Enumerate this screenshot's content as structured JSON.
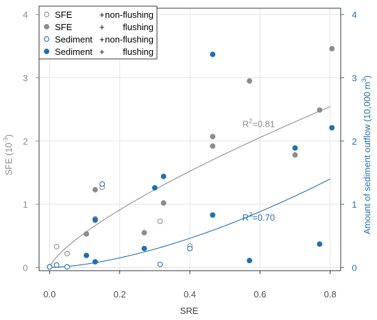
{
  "colors": {
    "sfe": "#8c8c8c",
    "sediment": "#1f6fb2",
    "grid": "#e3e3e3",
    "frame": "#333333"
  },
  "chart_data": {
    "type": "scatter",
    "xlabel": "SRE",
    "ylabel_left": {
      "text": "SFE (10",
      "sup": "-3",
      "suffix": ")"
    },
    "ylabel_right": {
      "text": "Amount of sediment outflow (10,000 m",
      "sup": "3",
      "suffix": ")"
    },
    "xlim": [
      -0.03,
      0.83
    ],
    "ylim": [
      -0.05,
      4.1
    ],
    "x_ticks": [
      0.0,
      0.2,
      0.4,
      0.6,
      0.8
    ],
    "x_tick_labels": [
      "0.0",
      "0.2",
      "0.4",
      "0.6",
      "0.8"
    ],
    "y_ticks": [
      0,
      1,
      2,
      3,
      4
    ],
    "y_left_tick_labels": [
      "0",
      "1",
      "2",
      "3",
      "4"
    ],
    "y_right_tick_labels": [
      "0",
      "1",
      "2",
      "3",
      "4"
    ],
    "grid": true,
    "legend": {
      "placement": "top-left",
      "entries": [
        {
          "label": "SFE",
          "condition": "+ non-flushing",
          "series": "sfe_nonflush"
        },
        {
          "label": "SFE",
          "condition": "+ flushing",
          "series": "sfe_flush"
        },
        {
          "label": "Sediment",
          "condition": "+ non-flushing",
          "series": "sed_nonflush"
        },
        {
          "label": "Sediment",
          "condition": "+ flushing",
          "series": "sed_flush"
        }
      ]
    },
    "series": [
      {
        "id": "sfe_nonflush",
        "color_key": "sfe",
        "filled": false,
        "points": [
          [
            0.0,
            0.01
          ],
          [
            0.02,
            0.33
          ],
          [
            0.05,
            0.22
          ],
          [
            0.15,
            1.27
          ],
          [
            0.315,
            0.73
          ],
          [
            0.4,
            0.34
          ]
        ]
      },
      {
        "id": "sfe_flush",
        "color_key": "sfe",
        "filled": true,
        "points": [
          [
            0.105,
            0.53
          ],
          [
            0.13,
            1.23
          ],
          [
            0.13,
            0.77
          ],
          [
            0.27,
            0.55
          ],
          [
            0.325,
            1.02
          ],
          [
            0.465,
            2.07
          ],
          [
            0.465,
            1.92
          ],
          [
            0.57,
            2.95
          ],
          [
            0.7,
            1.78
          ],
          [
            0.77,
            2.49
          ],
          [
            0.805,
            3.46
          ]
        ]
      },
      {
        "id": "sed_nonflush",
        "color_key": "sediment",
        "filled": false,
        "points": [
          [
            0.0,
            0.01
          ],
          [
            0.02,
            0.04
          ],
          [
            0.05,
            0.01
          ],
          [
            0.15,
            1.32
          ],
          [
            0.315,
            0.05
          ],
          [
            0.4,
            0.3
          ]
        ]
      },
      {
        "id": "sed_flush",
        "color_key": "sediment",
        "filled": true,
        "points": [
          [
            0.105,
            0.19
          ],
          [
            0.13,
            0.75
          ],
          [
            0.13,
            0.09
          ],
          [
            0.27,
            0.3
          ],
          [
            0.3,
            1.26
          ],
          [
            0.325,
            1.44
          ],
          [
            0.465,
            3.37
          ],
          [
            0.465,
            0.83
          ],
          [
            0.57,
            0.11
          ],
          [
            0.7,
            1.89
          ],
          [
            0.77,
            0.37
          ],
          [
            0.805,
            2.21
          ]
        ]
      }
    ],
    "fits": [
      {
        "id": "sfe_fit",
        "color_key": "sfe",
        "formula": "3.0*x^0.74",
        "a": 3.0,
        "b": 0.74,
        "x_range": [
          0.0,
          0.8
        ],
        "r2_label": "R",
        "r2_sup": "2",
        "r2_value": "=0.81",
        "label_at": [
          0.55,
          2.22
        ]
      },
      {
        "id": "sed_fit",
        "color_key": "sediment",
        "formula": "2.0*x^1.6",
        "a": 2.0,
        "b": 1.6,
        "x_range": [
          0.0,
          0.8
        ],
        "r2_label": "R",
        "r2_sup": "2",
        "r2_value": "=0.70",
        "label_at": [
          0.55,
          0.74
        ]
      }
    ]
  }
}
